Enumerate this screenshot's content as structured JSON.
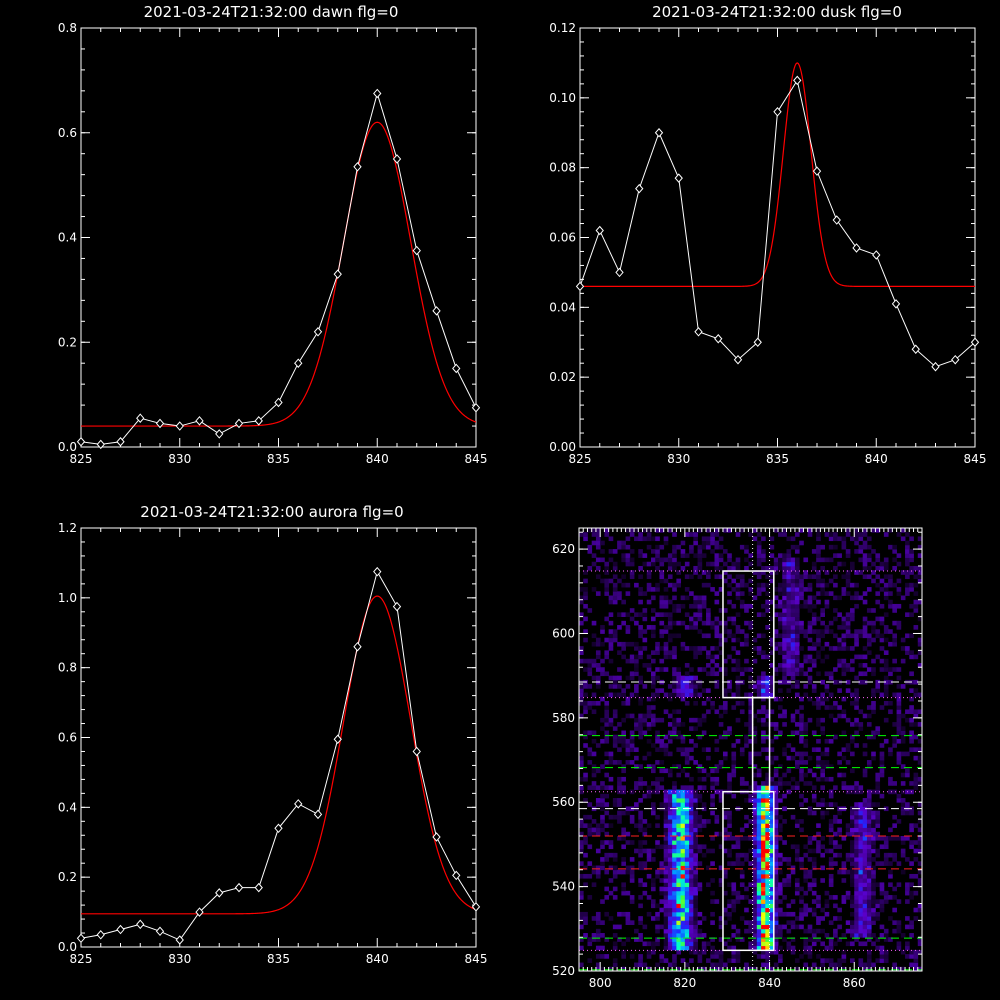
{
  "colors": {
    "background": "#000000",
    "axes": "#ffffff",
    "data_line": "#ffffff",
    "fit_line": "#ff0000",
    "white_dashed": "#ffffff",
    "green_dashed": "#00ff00",
    "red_dashed": "#ff0000"
  },
  "chart_data": [
    {
      "id": "dawn",
      "type": "line",
      "title": "2021-03-24T21:32:00 dawn flg=0",
      "xlim": [
        825,
        845
      ],
      "ylim": [
        0,
        0.8
      ],
      "xticks": [
        825,
        830,
        835,
        840,
        845
      ],
      "yticks": [
        0.0,
        0.2,
        0.4,
        0.6,
        0.8
      ],
      "xtick_labels": [
        "825",
        "830",
        "835",
        "840",
        "845"
      ],
      "ytick_labels": [
        "0.0",
        "0.2",
        "0.4",
        "0.6",
        "0.8"
      ],
      "series": [
        {
          "marker": "diamond",
          "x": [
            825,
            826,
            827,
            828,
            829,
            830,
            831,
            832,
            833,
            834,
            835,
            836,
            837,
            838,
            839,
            840,
            841,
            842,
            843,
            844,
            845
          ],
          "y": [
            0.01,
            0.005,
            0.01,
            0.055,
            0.045,
            0.04,
            0.05,
            0.025,
            0.045,
            0.05,
            0.085,
            0.16,
            0.22,
            0.33,
            0.535,
            0.675,
            0.55,
            0.375,
            0.26,
            0.15,
            0.075
          ]
        },
        {
          "style": "fit",
          "gaussian": {
            "baseline": 0.04,
            "amplitude": 0.58,
            "center": 840.0,
            "sigma": 1.7
          }
        }
      ]
    },
    {
      "id": "dusk",
      "type": "line",
      "title": "2021-03-24T21:32:00 dusk flg=0",
      "xlim": [
        825,
        845
      ],
      "ylim": [
        0,
        0.12
      ],
      "xticks": [
        825,
        830,
        835,
        840,
        845
      ],
      "yticks": [
        0.0,
        0.02,
        0.04,
        0.06,
        0.08,
        0.1,
        0.12
      ],
      "xtick_labels": [
        "825",
        "830",
        "835",
        "840",
        "845"
      ],
      "ytick_labels": [
        "0.00",
        "0.02",
        "0.04",
        "0.06",
        "0.08",
        "0.10",
        "0.12"
      ],
      "series": [
        {
          "marker": "diamond",
          "x": [
            825,
            826,
            827,
            828,
            829,
            830,
            831,
            832,
            833,
            834,
            835,
            836,
            837,
            838,
            839,
            840,
            841,
            842,
            843,
            844,
            845
          ],
          "y": [
            0.046,
            0.062,
            0.05,
            0.074,
            0.09,
            0.077,
            0.033,
            0.031,
            0.025,
            0.03,
            0.096,
            0.105,
            0.079,
            0.065,
            0.057,
            0.055,
            0.041,
            0.028,
            0.023,
            0.025,
            0.03
          ]
        },
        {
          "style": "fit",
          "gaussian": {
            "baseline": 0.046,
            "amplitude": 0.064,
            "center": 836.0,
            "sigma": 0.7
          }
        }
      ]
    },
    {
      "id": "aurora",
      "type": "line",
      "title": "2021-03-24T21:32:00 aurora flg=0",
      "xlim": [
        825,
        845
      ],
      "ylim": [
        0,
        1.2
      ],
      "xticks": [
        825,
        830,
        835,
        840,
        845
      ],
      "yticks": [
        0.0,
        0.2,
        0.4,
        0.6,
        0.8,
        1.0,
        1.2
      ],
      "xtick_labels": [
        "825",
        "830",
        "835",
        "840",
        "845"
      ],
      "ytick_labels": [
        "0.0",
        "0.2",
        "0.4",
        "0.6",
        "0.8",
        "1.0",
        "1.2"
      ],
      "series": [
        {
          "marker": "diamond",
          "x": [
            825,
            826,
            827,
            828,
            829,
            830,
            831,
            832,
            833,
            834,
            835,
            836,
            837,
            838,
            839,
            840,
            841,
            842,
            843,
            844,
            845
          ],
          "y": [
            0.025,
            0.035,
            0.05,
            0.065,
            0.045,
            0.02,
            0.1,
            0.155,
            0.17,
            0.17,
            0.34,
            0.41,
            0.38,
            0.595,
            0.86,
            1.075,
            0.975,
            0.56,
            0.315,
            0.205,
            0.115
          ]
        },
        {
          "style": "fit",
          "gaussian": {
            "baseline": 0.095,
            "amplitude": 0.91,
            "center": 840.0,
            "sigma": 1.7
          }
        }
      ]
    },
    {
      "id": "spectrogram",
      "type": "heatmap",
      "title": "",
      "xlim": [
        795,
        876
      ],
      "ylim": [
        520,
        625
      ],
      "xticks": [
        800,
        820,
        840,
        860
      ],
      "yticks": [
        520,
        540,
        560,
        580,
        600,
        620
      ],
      "xtick_labels": [
        "800",
        "820",
        "840",
        "860"
      ],
      "ytick_labels": [
        "520",
        "540",
        "560",
        "580",
        "600",
        "620"
      ],
      "bands": [
        {
          "x_center": 819,
          "width": 3.5,
          "y_range": [
            525,
            563
          ],
          "intensity": 0.75
        },
        {
          "x_center": 839,
          "width": 2.8,
          "y_range": [
            525,
            564
          ],
          "intensity": 1.0
        },
        {
          "x_center": 820,
          "width": 3,
          "y_range": [
            585,
            590
          ],
          "intensity": 0.35
        },
        {
          "x_center": 839,
          "width": 2.5,
          "y_range": [
            585,
            590
          ],
          "intensity": 0.35
        },
        {
          "x_center": 862,
          "width": 3,
          "y_range": [
            528,
            560
          ],
          "intensity": 0.3
        },
        {
          "x_center": 845,
          "width": 3,
          "y_range": [
            590,
            618
          ],
          "intensity": 0.22
        }
      ],
      "h_lines": [
        {
          "y": 588.5,
          "color": "white",
          "style": "dashed"
        },
        {
          "y": 558.5,
          "color": "white",
          "style": "dashed"
        },
        {
          "y": 575.8,
          "color": "green",
          "style": "dashed"
        },
        {
          "y": 568.2,
          "color": "green",
          "style": "dashed"
        },
        {
          "y": 527.8,
          "color": "green",
          "style": "dashed"
        },
        {
          "y": 520.3,
          "color": "green",
          "style": "dashed"
        },
        {
          "y": 552.0,
          "color": "red",
          "style": "dashed"
        },
        {
          "y": 544.2,
          "color": "red",
          "style": "dashed"
        },
        {
          "y": 614.8,
          "color": "magenta",
          "style": "dotted"
        },
        {
          "y": 584.8,
          "color": "magenta",
          "style": "dotted"
        },
        {
          "y": 562.5,
          "color": "magenta",
          "style": "dotted"
        },
        {
          "y": 524.9,
          "color": "magenta",
          "style": "dotted"
        }
      ],
      "v_lines": [
        {
          "x": 836,
          "color": "white",
          "style": "dotted"
        },
        {
          "x": 840,
          "color": "white",
          "style": "dotted"
        }
      ],
      "boxes": [
        {
          "x_range": [
            829,
            841
          ],
          "y_range": [
            584.8,
            614.8
          ]
        },
        {
          "x_range": [
            829,
            841
          ],
          "y_range": [
            524.9,
            562.5
          ]
        }
      ],
      "connector": {
        "x_range": [
          836,
          840
        ],
        "y_range": [
          562.5,
          584.8
        ]
      }
    }
  ]
}
